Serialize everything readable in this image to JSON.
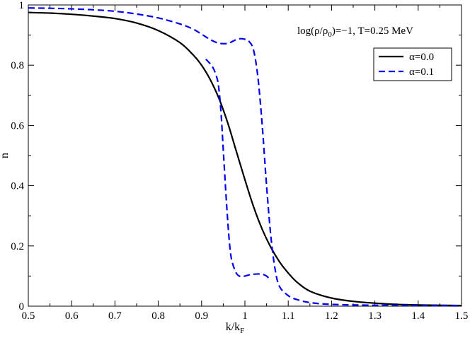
{
  "chart_data": {
    "type": "line",
    "title": "",
    "xlabel": "k/k",
    "xlabel_sub": "F",
    "ylabel": "n",
    "xlim": [
      0.5,
      1.5
    ],
    "ylim": [
      0,
      1
    ],
    "xticks": [
      "0.5",
      "0.6",
      "0.7",
      "0.8",
      "0.9",
      "1",
      "1.1",
      "1.2",
      "1.3",
      "1.4",
      "1.5"
    ],
    "yticks": [
      "0",
      "0.2",
      "0.4",
      "0.6",
      "0.8",
      "1"
    ],
    "annotation": {
      "prefix": "log(ρ/ρ",
      "sub": "0",
      "suffix": ")=−1, T=0.25 MeV"
    },
    "legend": {
      "placement": "top-right"
    },
    "grid": false,
    "series": [
      {
        "name": "α=0.0",
        "color": "#000000",
        "dash": "solid",
        "points": [
          [
            0.5,
            0.975
          ],
          [
            0.55,
            0.973
          ],
          [
            0.6,
            0.969
          ],
          [
            0.65,
            0.963
          ],
          [
            0.7,
            0.955
          ],
          [
            0.75,
            0.94
          ],
          [
            0.8,
            0.915
          ],
          [
            0.85,
            0.875
          ],
          [
            0.88,
            0.835
          ],
          [
            0.9,
            0.8
          ],
          [
            0.92,
            0.752
          ],
          [
            0.94,
            0.69
          ],
          [
            0.96,
            0.61
          ],
          [
            0.98,
            0.515
          ],
          [
            1.0,
            0.42
          ],
          [
            1.02,
            0.33
          ],
          [
            1.04,
            0.255
          ],
          [
            1.06,
            0.195
          ],
          [
            1.08,
            0.147
          ],
          [
            1.1,
            0.11
          ],
          [
            1.12,
            0.08
          ],
          [
            1.15,
            0.05
          ],
          [
            1.2,
            0.027
          ],
          [
            1.25,
            0.016
          ],
          [
            1.3,
            0.01
          ],
          [
            1.35,
            0.006
          ],
          [
            1.4,
            0.004
          ],
          [
            1.45,
            0.003
          ],
          [
            1.5,
            0.002
          ]
        ]
      },
      {
        "name": "α=0.1",
        "color": "#0000ee",
        "dash": "dashed",
        "branches": [
          [
            [
              0.5,
              0.99
            ],
            [
              0.55,
              0.989
            ],
            [
              0.6,
              0.987
            ],
            [
              0.65,
              0.984
            ],
            [
              0.7,
              0.979
            ],
            [
              0.75,
              0.97
            ],
            [
              0.8,
              0.957
            ],
            [
              0.85,
              0.937
            ],
            [
              0.88,
              0.92
            ],
            [
              0.9,
              0.903
            ],
            [
              0.92,
              0.885
            ],
            [
              0.94,
              0.873
            ],
            [
              0.96,
              0.872
            ],
            [
              0.97,
              0.878
            ],
            [
              0.98,
              0.885
            ],
            [
              0.99,
              0.888
            ],
            [
              1.0,
              0.886
            ],
            [
              1.01,
              0.878
            ],
            [
              1.02,
              0.85
            ],
            [
              1.03,
              0.76
            ],
            [
              1.04,
              0.6
            ],
            [
              1.05,
              0.4
            ],
            [
              1.06,
              0.23
            ],
            [
              1.07,
              0.12
            ],
            [
              1.08,
              0.065
            ],
            [
              1.1,
              0.035
            ],
            [
              1.12,
              0.022
            ],
            [
              1.15,
              0.012
            ],
            [
              1.2,
              0.006
            ],
            [
              1.3,
              0.003
            ],
            [
              1.4,
              0.002
            ],
            [
              1.5,
              0.001
            ]
          ],
          [
            [
              0.91,
              0.82
            ],
            [
              0.925,
              0.795
            ],
            [
              0.935,
              0.76
            ],
            [
              0.94,
              0.72
            ],
            [
              0.945,
              0.64
            ],
            [
              0.95,
              0.52
            ],
            [
              0.955,
              0.4
            ],
            [
              0.96,
              0.29
            ],
            [
              0.965,
              0.2
            ],
            [
              0.97,
              0.15
            ],
            [
              0.98,
              0.11
            ],
            [
              0.99,
              0.098
            ],
            [
              1.0,
              0.1
            ],
            [
              1.01,
              0.104
            ],
            [
              1.02,
              0.106
            ],
            [
              1.03,
              0.107
            ],
            [
              1.04,
              0.106
            ],
            [
              1.05,
              0.1
            ],
            [
              1.06,
              0.085
            ]
          ]
        ]
      }
    ]
  }
}
